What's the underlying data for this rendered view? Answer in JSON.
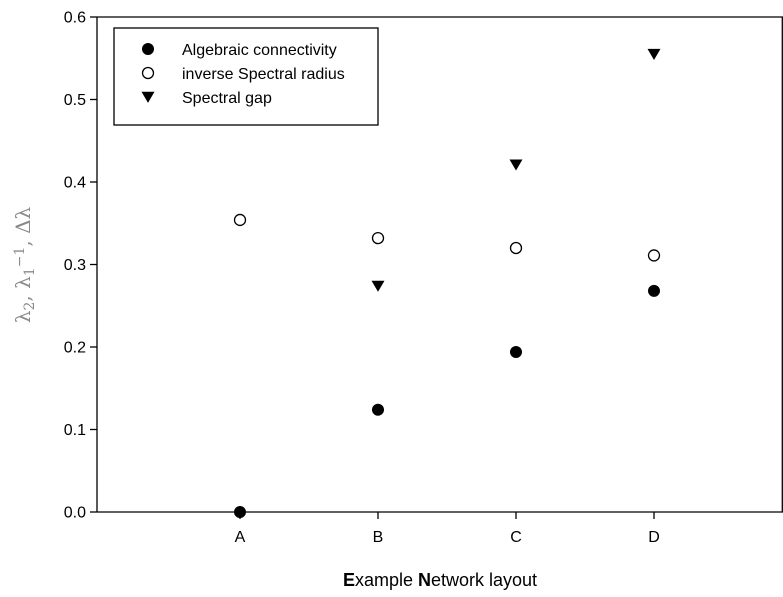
{
  "chart_data": {
    "type": "scatter",
    "categories": [
      "A",
      "B",
      "C",
      "D"
    ],
    "series": [
      {
        "name": "Algebraic connectivity",
        "marker": "filled-circle",
        "values": [
          0.0,
          0.124,
          0.194,
          0.268
        ]
      },
      {
        "name": "inverse Spectral radius",
        "marker": "open-circle",
        "values": [
          0.354,
          0.332,
          0.32,
          0.311
        ]
      },
      {
        "name": "Spectral gap",
        "marker": "filled-triangle-down",
        "values": [
          null,
          0.274,
          0.421,
          0.555
        ]
      }
    ],
    "xlabel": {
      "parts": [
        {
          "text": "E",
          "bold": true
        },
        {
          "text": "xample ",
          "bold": false
        },
        {
          "text": "N",
          "bold": true
        },
        {
          "text": "etwork layout",
          "bold": false
        }
      ]
    },
    "ylabel": {
      "parts": [
        {
          "text": "λ"
        },
        {
          "text": "2",
          "sub": true
        },
        {
          "text": ", λ"
        },
        {
          "text": "1",
          "sub": true
        },
        {
          "text": "−1",
          "sup": true
        },
        {
          "text": ", Δλ"
        }
      ]
    },
    "ylim": [
      0,
      0.6
    ],
    "yticks": [
      "0.0",
      "0.1",
      "0.2",
      "0.3",
      "0.4",
      "0.5",
      "0.6"
    ],
    "grid": false,
    "legend_position": "top-left",
    "colors": {
      "marker": "#000000",
      "axis": "#000000",
      "ylabel": "#8a8a8a"
    }
  }
}
